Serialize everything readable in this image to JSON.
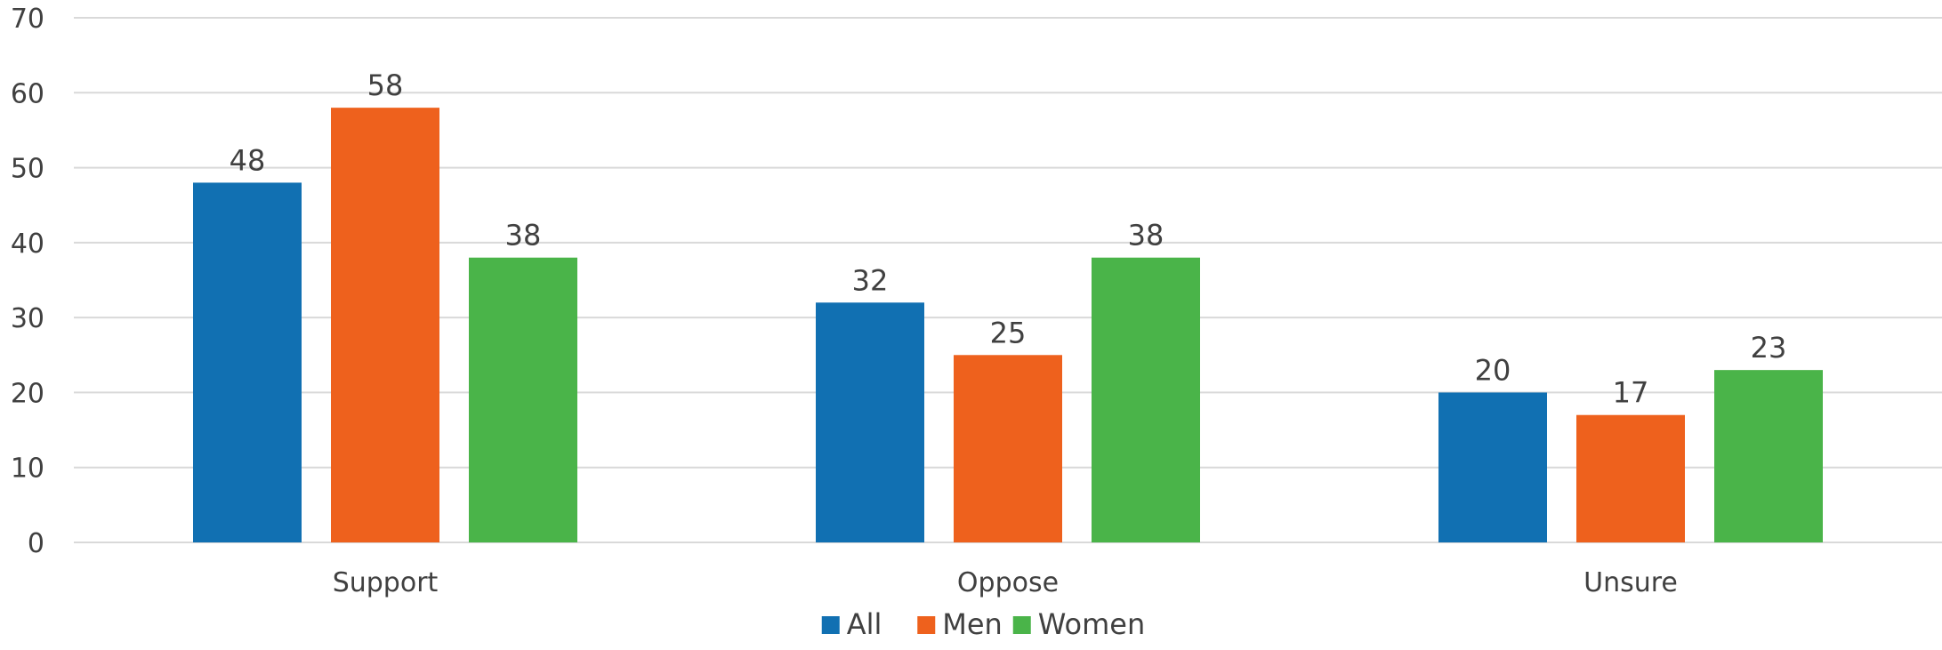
{
  "chart_data": {
    "type": "bar",
    "title": "",
    "xlabel": "",
    "ylabel": "",
    "categories": [
      "Support",
      "Oppose",
      "Unsure"
    ],
    "series": [
      {
        "name": "All",
        "values": [
          48,
          32,
          20
        ],
        "color": "#1170B2"
      },
      {
        "name": "Men",
        "values": [
          58,
          25,
          17
        ],
        "color": "#EE611D"
      },
      {
        "name": "Women",
        "values": [
          38,
          38,
          23
        ],
        "color": "#4AB449"
      }
    ],
    "ylim": [
      0,
      70
    ],
    "yticks": [
      0,
      10,
      20,
      30,
      40,
      50,
      60,
      70
    ],
    "grid": true,
    "legend": "bottom-center",
    "data_labels": true
  }
}
